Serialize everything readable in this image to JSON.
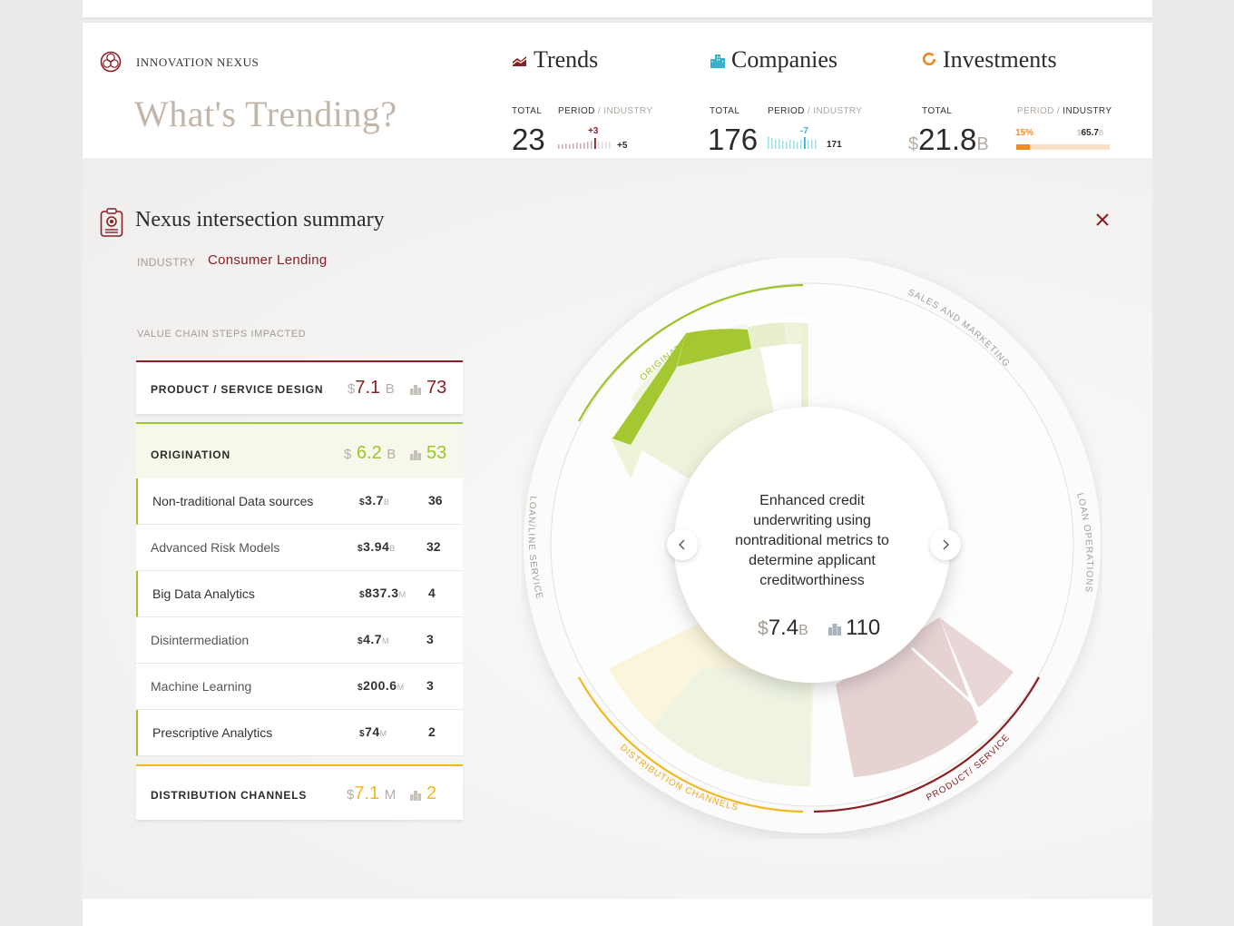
{
  "brand": {
    "name": "INNOVATION NEXUS",
    "headline": "What's Trending?",
    "logo_icon": "nexus-logo-icon"
  },
  "stats": {
    "trends": {
      "title": "Trends",
      "icon": "area-chart-icon",
      "total_label": "TOTAL",
      "period_label": "PERIOD",
      "industry_label": "INDUSTRY",
      "sep": " / ",
      "total": "23",
      "period_delta": "+3",
      "industry_delta": "+5",
      "color": "#8a1f24"
    },
    "companies": {
      "title": "Companies",
      "icon": "buildings-icon",
      "total_label": "TOTAL",
      "period_label": "PERIOD",
      "industry_label": "INDUSTRY",
      "sep": " / ",
      "total": "176",
      "period_delta": "-7",
      "industry_value": "171",
      "color": "#35b3c9"
    },
    "investments": {
      "title": "Investments",
      "icon": "ring-icon",
      "total_label": "TOTAL",
      "period_label": "PERIOD",
      "industry_label": "INDUSTRY",
      "sep": " / ",
      "currency": "$",
      "total": "21.8",
      "unit": "B",
      "period_pct": "15%",
      "period_fraction": 0.15,
      "industry_currency": "$",
      "industry_value": "65.7",
      "industry_unit": "B",
      "color": "#f08a24"
    }
  },
  "summary": {
    "title": "Nexus intersection summary",
    "industry_label": "INDUSTRY",
    "industry_value": "Consumer Lending",
    "value_chain_label": "VALUE CHAIN STEPS IMPACTED",
    "categories": [
      {
        "name": "PRODUCT / SERVICE DESIGN",
        "currency": "$",
        "value": "7.1",
        "unit": "B",
        "count": "73",
        "color": "#8a1f24"
      },
      {
        "name": "ORIGINATION",
        "currency": "$",
        "value": "6.2",
        "unit": "B",
        "count": "53",
        "color": "#9dc428"
      },
      {
        "name": "DISTRIBUTION CHANNELS",
        "currency": "$",
        "value": "7.1",
        "unit": "M",
        "count": "2",
        "color": "#f2b81f"
      }
    ],
    "subitems": [
      {
        "name": "Non-traditional Data sources",
        "currency": "$",
        "value": "3.7",
        "unit": "B",
        "count": "36",
        "active": true
      },
      {
        "name": "Advanced Risk Models",
        "currency": "$",
        "value": "3.94",
        "unit": "B",
        "count": "32",
        "active": false
      },
      {
        "name": "Big Data Analytics",
        "currency": "$",
        "value": "837.3",
        "unit": "M",
        "count": "4",
        "active": true
      },
      {
        "name": "Disintermediation",
        "currency": "$",
        "value": "4.7",
        "unit": "M",
        "count": "3",
        "active": false
      },
      {
        "name": "Machine Learning",
        "currency": "$",
        "value": "200.6",
        "unit": "M",
        "count": "3",
        "active": false
      },
      {
        "name": "Prescriptive Analytics",
        "currency": "$",
        "value": "74",
        "unit": "M",
        "count": "2",
        "active": true
      }
    ]
  },
  "wheel": {
    "segments": [
      "ORIGINATION",
      "SALES AND MARKETING",
      "LOAN OPERATIONS",
      "PRODUCT/ SERVICE",
      "DISTRIBUTION CHANNELS",
      "LOAN/LINE SERVICE"
    ],
    "center_text": "Enhanced credit underwriting using nontraditional metrics to determine applicant creditworthiness",
    "currency": "$",
    "value": "7.4",
    "unit": "B",
    "count": "110",
    "colors": {
      "origination": "#9dc428",
      "product": "#8a1f24",
      "distribution": "#f2b81f"
    }
  }
}
